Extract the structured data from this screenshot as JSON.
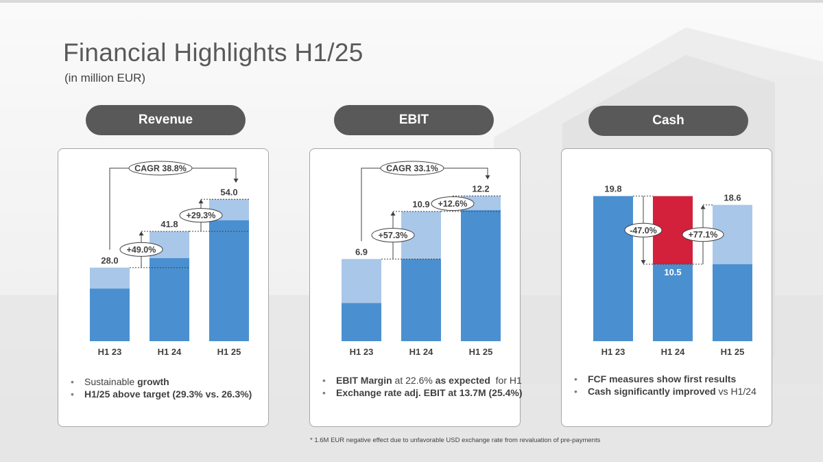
{
  "header": {
    "title": "Financial Highlights H1/25",
    "subtitle": "(in million EUR)"
  },
  "panels": [
    {
      "name": "Revenue",
      "bullets": [
        {
          "plain_before": "Sustainable ",
          "bold": "growth",
          "plain_after": ""
        },
        {
          "plain_before": "",
          "bold": "H1/25 above target (29.3% vs. 26.3%)",
          "plain_after": ""
        }
      ]
    },
    {
      "name": "EBIT",
      "bullets": [
        {
          "plain_before": "",
          "bold": "EBIT Margin",
          "plain_after": " at 22.6% ",
          "bold2": "as expected",
          "plain_after2": "  for H1"
        },
        {
          "plain_before": "",
          "bold": "Exchange rate adj. EBIT at 13.7M (25.4%)",
          "plain_after": ""
        }
      ]
    },
    {
      "name": "Cash",
      "bullets": [
        {
          "plain_before": "",
          "bold": "FCF measures show first results",
          "plain_after": ""
        },
        {
          "plain_before": "",
          "bold": "Cash significantly improved",
          "plain_after": " vs H1/24"
        }
      ]
    }
  ],
  "footnote": "* 1.6M EUR negative effect due to unfavorable USD exchange rate from revaluation of pre-payments",
  "colors": {
    "dark": "#4a90d0",
    "light": "#a9c7e8",
    "red": "#d3203b",
    "pill": "#595959"
  },
  "chart_data": [
    {
      "type": "bar",
      "title": "Revenue",
      "categories": [
        "H1 23",
        "H1 24",
        "H1 25"
      ],
      "values": [
        28.0,
        41.8,
        54.0
      ],
      "value_labels": [
        "28.0",
        "41.8",
        "54.0"
      ],
      "dark_segment_values": [
        20.0,
        31.6,
        46.0
      ],
      "ylim": [
        0,
        58
      ],
      "growth_labels": [
        "+49.0%",
        "+29.3%"
      ],
      "cagr_label": "CAGR 38.8%"
    },
    {
      "type": "bar",
      "title": "EBIT",
      "categories": [
        "H1 23",
        "H1 24",
        "H1 25"
      ],
      "values": [
        6.9,
        10.9,
        12.2
      ],
      "value_labels": [
        "6.9",
        "10.9",
        "12.2"
      ],
      "dark_segment_values": [
        3.2,
        6.9,
        11.0
      ],
      "ylim": [
        0,
        12.8
      ],
      "growth_labels": [
        "+57.3%",
        "+12.6%"
      ],
      "cagr_label": "CAGR 33.1%"
    },
    {
      "type": "bar",
      "title": "Cash",
      "categories": [
        "H1 23",
        "H1 24",
        "H1 25"
      ],
      "values": [
        19.8,
        10.5,
        18.6
      ],
      "value_labels": [
        "19.8",
        "10.5",
        "18.6"
      ],
      "dark_segment_values": [
        19.8,
        10.5,
        10.5
      ],
      "red_segment": {
        "category": "H1 24",
        "from": 10.5,
        "to": 19.8
      },
      "ylim": [
        0,
        20.8
      ],
      "change_labels": [
        "-47.0%",
        "+77.1%"
      ]
    }
  ]
}
